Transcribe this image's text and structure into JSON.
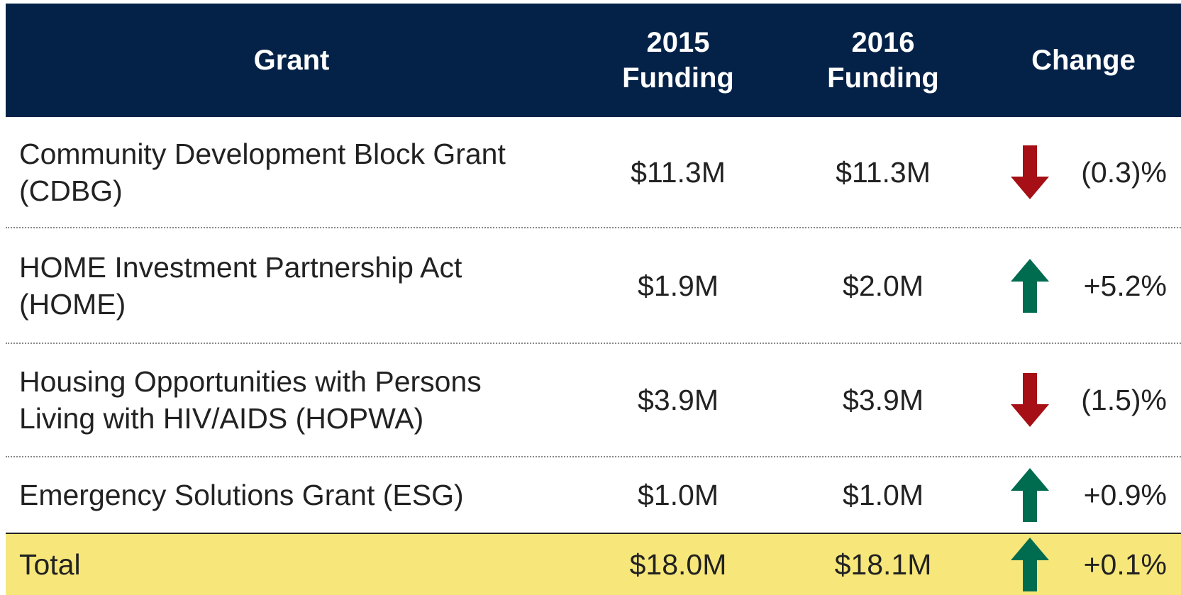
{
  "table": {
    "header": [
      "Grant",
      "2015 Funding",
      "2016 Funding",
      "Change"
    ],
    "rows": [
      [
        "Community Development Block Grant (CDBG)",
        "$11.3M",
        "$11.3M",
        "(0.3)%"
      ],
      [
        "HOME Investment Partnership Act (HOME)",
        "$1.9M",
        "$2.0M",
        "+5.2%"
      ],
      [
        "Housing Opportunities with Persons Living with HIV/AIDS (HOPWA)",
        "$3.9M",
        "$3.9M",
        "(1.5)%"
      ],
      [
        "Emergency Solutions Grant (ESG)",
        "$1.0M",
        "$1.0M",
        "+0.9%"
      ]
    ],
    "total": [
      "Total",
      "$18.0M",
      "$18.1M",
      "+0.1%"
    ]
  }
}
